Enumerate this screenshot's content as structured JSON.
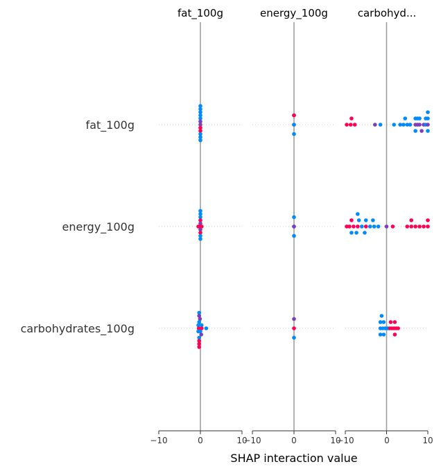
{
  "chart_data": {
    "type": "scatter",
    "title": "",
    "xlabel": "SHAP interaction value",
    "features": [
      "fat_100g",
      "energy_100g",
      "carbohydrates_100g"
    ],
    "column_titles": [
      "fat_100g",
      "energy_100g",
      "carbohyd..."
    ],
    "xlim": [
      -10,
      10
    ],
    "xticks": [
      "−10",
      "0",
      "10"
    ],
    "grid": "dotted horizontal row guides",
    "colors": {
      "low": "#008bfb",
      "high": "#ff0052",
      "mid": "#7c3fb8",
      "zero_line": "#999999",
      "axis": "#333333"
    },
    "cells": [
      {
        "column": "fat_100g",
        "row": "fat_100g",
        "points": [
          {
            "x": 0,
            "y": 3,
            "c": "low"
          },
          {
            "x": 0,
            "y": 2.5,
            "c": "low"
          },
          {
            "x": 0,
            "y": 2,
            "c": "low"
          },
          {
            "x": 0,
            "y": 1.5,
            "c": "low"
          },
          {
            "x": 0,
            "y": 1,
            "c": "low"
          },
          {
            "x": 0,
            "y": 0.5,
            "c": "mid"
          },
          {
            "x": 0,
            "y": 0,
            "c": "mid"
          },
          {
            "x": 0,
            "y": -0.5,
            "c": "high"
          },
          {
            "x": 0,
            "y": -1,
            "c": "high"
          },
          {
            "x": 0,
            "y": -1.5,
            "c": "low"
          },
          {
            "x": 0,
            "y": -2,
            "c": "low"
          },
          {
            "x": 0,
            "y": -2.5,
            "c": "low"
          }
        ]
      },
      {
        "column": "energy_100g",
        "row": "fat_100g",
        "points": [
          {
            "x": 0,
            "y": 1.5,
            "c": "mid"
          },
          {
            "x": 0,
            "y": 1.5,
            "c": "high"
          },
          {
            "x": 0,
            "y": 0,
            "c": "mid"
          },
          {
            "x": 0,
            "y": 0,
            "c": "low"
          },
          {
            "x": 0,
            "y": -1.5,
            "c": "low"
          }
        ]
      },
      {
        "column": "carbohydrates_100g",
        "row": "fat_100g",
        "points": [
          {
            "x": 10,
            "y": 2,
            "c": "low"
          },
          {
            "x": -8.5,
            "y": 1,
            "c": "high"
          },
          {
            "x": 4.5,
            "y": 1,
            "c": "low"
          },
          {
            "x": 7,
            "y": 1,
            "c": "low"
          },
          {
            "x": 7.5,
            "y": 1,
            "c": "low"
          },
          {
            "x": 8,
            "y": 1,
            "c": "low"
          },
          {
            "x": 9.5,
            "y": 1,
            "c": "low"
          },
          {
            "x": 10,
            "y": 1,
            "c": "low"
          },
          {
            "x": -10,
            "y": 0,
            "c": "high"
          },
          {
            "x": -8.7,
            "y": 0,
            "c": "high"
          },
          {
            "x": -7.7,
            "y": 0,
            "c": "high"
          },
          {
            "x": -2.8,
            "y": 0,
            "c": "mid"
          },
          {
            "x": -1.5,
            "y": 0,
            "c": "low"
          },
          {
            "x": 1.8,
            "y": 0,
            "c": "low"
          },
          {
            "x": 3.3,
            "y": 0,
            "c": "low"
          },
          {
            "x": 4.1,
            "y": 0,
            "c": "low"
          },
          {
            "x": 5,
            "y": 0,
            "c": "low"
          },
          {
            "x": 5.7,
            "y": 0,
            "c": "low"
          },
          {
            "x": 7,
            "y": 0,
            "c": "mid"
          },
          {
            "x": 7.5,
            "y": 0,
            "c": "mid"
          },
          {
            "x": 8,
            "y": 0,
            "c": "mid"
          },
          {
            "x": 9,
            "y": 0,
            "c": "mid"
          },
          {
            "x": 9.5,
            "y": 0,
            "c": "low"
          },
          {
            "x": 10,
            "y": 0,
            "c": "mid"
          },
          {
            "x": 7,
            "y": -1,
            "c": "low"
          },
          {
            "x": 8.5,
            "y": -1,
            "c": "mid"
          },
          {
            "x": 10,
            "y": -1,
            "c": "low"
          }
        ]
      },
      {
        "column": "fat_100g",
        "row": "energy_100g",
        "points": [
          {
            "x": 0,
            "y": 2.5,
            "c": "low"
          },
          {
            "x": 0,
            "y": 2,
            "c": "low"
          },
          {
            "x": 0,
            "y": 1.5,
            "c": "low"
          },
          {
            "x": 0,
            "y": 1,
            "c": "high"
          },
          {
            "x": 0,
            "y": 0.5,
            "c": "mid"
          },
          {
            "x": -0.5,
            "y": 0,
            "c": "high"
          },
          {
            "x": 0,
            "y": 0,
            "c": "high"
          },
          {
            "x": 0.3,
            "y": 0,
            "c": "high"
          },
          {
            "x": 0,
            "y": -0.5,
            "c": "mid"
          },
          {
            "x": 0,
            "y": -1,
            "c": "high"
          },
          {
            "x": 0,
            "y": -1.5,
            "c": "low"
          },
          {
            "x": 0,
            "y": -2,
            "c": "low"
          }
        ]
      },
      {
        "column": "energy_100g",
        "row": "energy_100g",
        "points": [
          {
            "x": 0,
            "y": 1.5,
            "c": "low"
          },
          {
            "x": 0,
            "y": 0,
            "c": "low"
          },
          {
            "x": 0,
            "y": 0,
            "c": "mid"
          },
          {
            "x": 0,
            "y": -1.5,
            "c": "low"
          }
        ]
      },
      {
        "column": "carbohydrates_100g",
        "row": "energy_100g",
        "points": [
          {
            "x": -7,
            "y": 2,
            "c": "low"
          },
          {
            "x": -8.5,
            "y": 1,
            "c": "high"
          },
          {
            "x": -6.7,
            "y": 1,
            "c": "low"
          },
          {
            "x": -5,
            "y": 1,
            "c": "low"
          },
          {
            "x": -3.3,
            "y": 1,
            "c": "low"
          },
          {
            "x": 6,
            "y": 1,
            "c": "high"
          },
          {
            "x": 10,
            "y": 1,
            "c": "high"
          },
          {
            "x": -10,
            "y": 0,
            "c": "high"
          },
          {
            "x": -9,
            "y": 0,
            "c": "high"
          },
          {
            "x": -8,
            "y": 0,
            "c": "high"
          },
          {
            "x": -7,
            "y": 0,
            "c": "high"
          },
          {
            "x": -6,
            "y": 0,
            "c": "low"
          },
          {
            "x": -5,
            "y": 0,
            "c": "high"
          },
          {
            "x": -4,
            "y": 0,
            "c": "low"
          },
          {
            "x": -3,
            "y": 0,
            "c": "low"
          },
          {
            "x": -2,
            "y": 0,
            "c": "low"
          },
          {
            "x": 0,
            "y": 0,
            "c": "mid"
          },
          {
            "x": 1.5,
            "y": 0,
            "c": "high"
          },
          {
            "x": 5,
            "y": 0,
            "c": "high"
          },
          {
            "x": 6,
            "y": 0,
            "c": "high"
          },
          {
            "x": 7,
            "y": 0,
            "c": "high"
          },
          {
            "x": 8,
            "y": 0,
            "c": "high"
          },
          {
            "x": 9,
            "y": 0,
            "c": "high"
          },
          {
            "x": 10,
            "y": 0,
            "c": "high"
          },
          {
            "x": -8.5,
            "y": -1,
            "c": "low"
          },
          {
            "x": -7.3,
            "y": -1,
            "c": "low"
          },
          {
            "x": -5.3,
            "y": -1,
            "c": "low"
          }
        ]
      },
      {
        "column": "fat_100g",
        "row": "carbohydrates_100g",
        "points": [
          {
            "x": -0.3,
            "y": 2.5,
            "c": "low"
          },
          {
            "x": -0.3,
            "y": 2,
            "c": "mid"
          },
          {
            "x": -0.1,
            "y": 1.5,
            "c": "mid"
          },
          {
            "x": -0.3,
            "y": 1,
            "c": "low"
          },
          {
            "x": -0.5,
            "y": 0.5,
            "c": "low"
          },
          {
            "x": 0.3,
            "y": 0.5,
            "c": "low"
          },
          {
            "x": -0.4,
            "y": 0,
            "c": "high"
          },
          {
            "x": 0.3,
            "y": 0,
            "c": "high"
          },
          {
            "x": 1.4,
            "y": 0,
            "c": "low"
          },
          {
            "x": -0.5,
            "y": -0.5,
            "c": "low"
          },
          {
            "x": 0,
            "y": -0.5,
            "c": "low"
          },
          {
            "x": 0.2,
            "y": -1,
            "c": "mid"
          },
          {
            "x": -0.3,
            "y": -1.5,
            "c": "low"
          },
          {
            "x": -0.3,
            "y": -2,
            "c": "high"
          },
          {
            "x": -0.3,
            "y": -2.5,
            "c": "high"
          },
          {
            "x": -0.3,
            "y": -3,
            "c": "high"
          }
        ]
      },
      {
        "column": "energy_100g",
        "row": "carbohydrates_100g",
        "points": [
          {
            "x": 0,
            "y": 1.5,
            "c": "mid"
          },
          {
            "x": 0,
            "y": 0,
            "c": "high"
          },
          {
            "x": 0,
            "y": -1.5,
            "c": "low"
          }
        ]
      },
      {
        "column": "carbohydrates_100g",
        "row": "carbohydrates_100g",
        "points": [
          {
            "x": -1.2,
            "y": 2,
            "c": "low"
          },
          {
            "x": -1.5,
            "y": 1,
            "c": "low"
          },
          {
            "x": -0.7,
            "y": 1,
            "c": "low"
          },
          {
            "x": 1,
            "y": 1,
            "c": "high"
          },
          {
            "x": 2,
            "y": 1,
            "c": "high"
          },
          {
            "x": -1.5,
            "y": 0,
            "c": "low"
          },
          {
            "x": -0.9,
            "y": 0,
            "c": "low"
          },
          {
            "x": -0.3,
            "y": 0,
            "c": "low"
          },
          {
            "x": 0.3,
            "y": 0,
            "c": "low"
          },
          {
            "x": 0.8,
            "y": 0,
            "c": "high"
          },
          {
            "x": 1.3,
            "y": 0,
            "c": "high"
          },
          {
            "x": 1.8,
            "y": 0,
            "c": "high"
          },
          {
            "x": 2.3,
            "y": 0,
            "c": "high"
          },
          {
            "x": 2.8,
            "y": 0,
            "c": "high"
          },
          {
            "x": -1.5,
            "y": -1,
            "c": "low"
          },
          {
            "x": -0.7,
            "y": -1,
            "c": "low"
          },
          {
            "x": 2,
            "y": -1,
            "c": "high"
          }
        ]
      }
    ]
  }
}
